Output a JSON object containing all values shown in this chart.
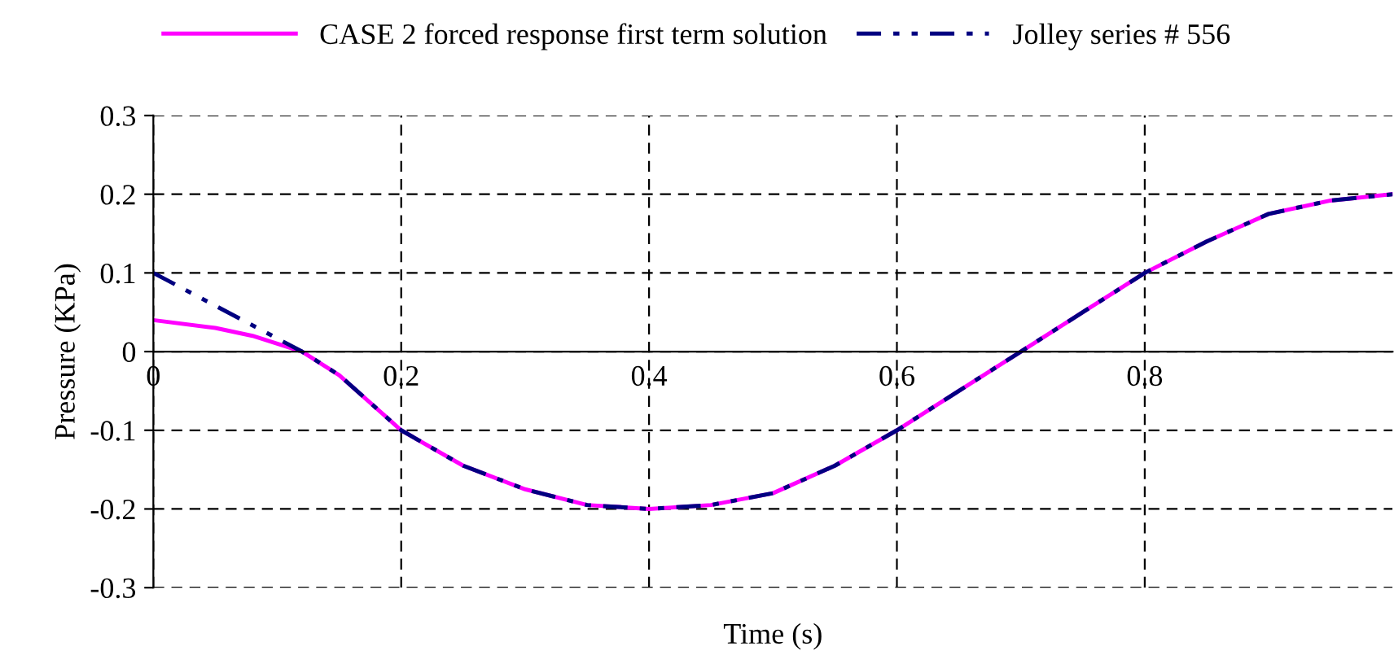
{
  "chart_data": {
    "type": "line",
    "xlabel": "Time (s)",
    "ylabel": "Pressure (KPa)",
    "x": [
      0,
      0.05,
      0.08,
      0.1,
      0.12,
      0.15,
      0.2,
      0.25,
      0.3,
      0.35,
      0.4,
      0.45,
      0.5,
      0.55,
      0.6,
      0.65,
      0.7,
      0.75,
      0.8,
      0.85,
      0.9,
      0.95,
      1.0
    ],
    "series": [
      {
        "name": "CASE 2 forced response first term solution",
        "color": "#ff00ff",
        "line_style": "solid",
        "values": [
          0.04,
          0.03,
          0.02,
          0.01,
          0,
          -0.03,
          -0.1,
          -0.145,
          -0.175,
          -0.195,
          -0.2,
          -0.195,
          -0.18,
          -0.145,
          -0.1,
          -0.05,
          0,
          0.05,
          0.1,
          0.14,
          0.175,
          0.192,
          0.2
        ]
      },
      {
        "name": "Jolley series # 556",
        "color": "#000080",
        "line_style": "dashed",
        "values": [
          0.1,
          null,
          null,
          null,
          0,
          -0.03,
          -0.1,
          -0.145,
          -0.175,
          -0.195,
          -0.2,
          -0.195,
          -0.18,
          -0.145,
          -0.1,
          -0.05,
          0,
          0.05,
          0.1,
          0.14,
          0.175,
          0.192,
          0.2
        ]
      }
    ],
    "xlim": [
      0,
      1
    ],
    "xticks": [
      0,
      0.2,
      0.4,
      0.6,
      0.8
    ],
    "ylim": [
      -0.3,
      0.3
    ],
    "yticks": [
      -0.3,
      -0.2,
      -0.1,
      0,
      0.1,
      0.2,
      0.3
    ],
    "grid": true,
    "legend": "top",
    "marker": "none"
  }
}
